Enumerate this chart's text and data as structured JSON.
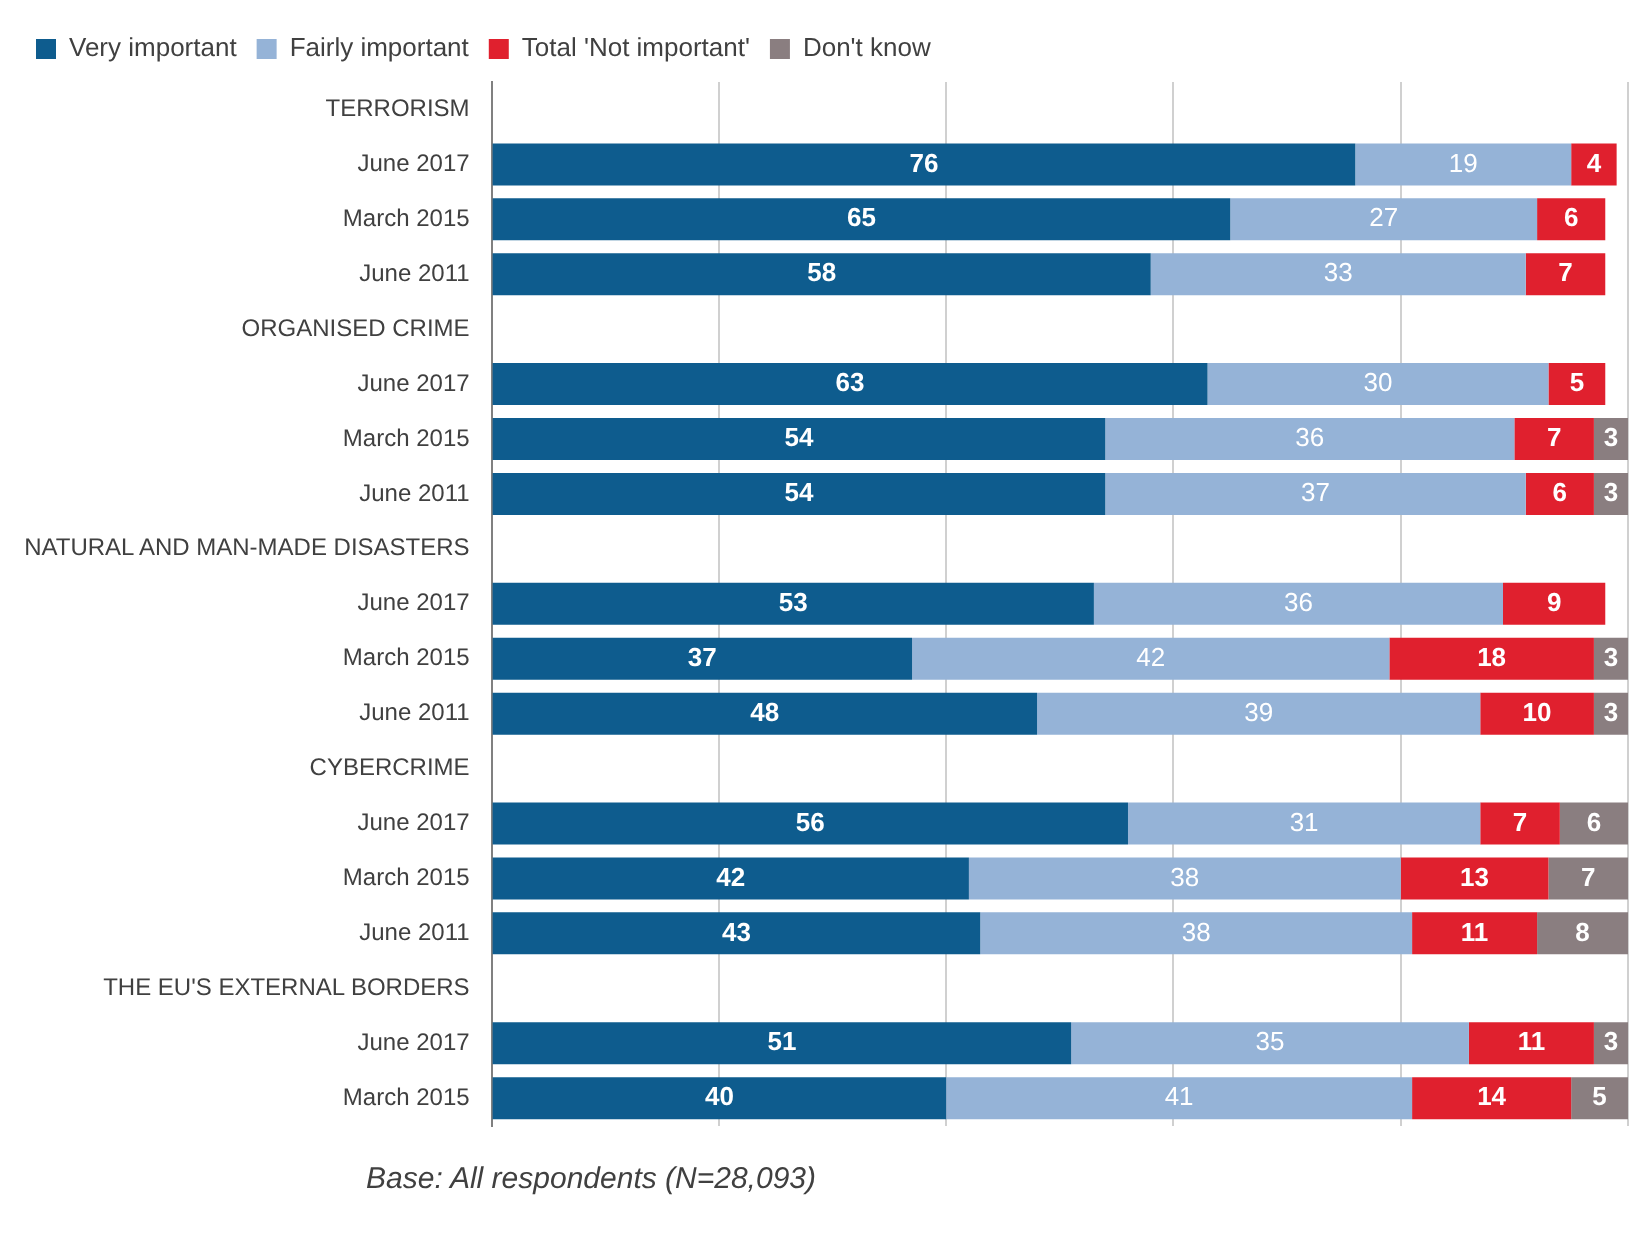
{
  "chart_data": {
    "type": "bar",
    "orientation": "horizontal",
    "stacked": true,
    "data_labels": true,
    "legend": "top",
    "grid": "x",
    "tick_labels": "y",
    "categories": [
      "TERRORISM",
      "June 2017",
      "March 2015",
      "June 2011",
      "ORGANISED CRIME",
      "June 2017",
      "March 2015",
      "June 2011",
      "NATURAL AND MAN-MADE DISASTERS",
      "June 2017",
      "March 2015",
      "June 2011",
      "CYBERCRIME",
      "June 2017",
      "March 2015",
      "June 2011",
      "THE EU'S EXTERNAL BORDERS",
      "June 2017",
      "March 2015"
    ],
    "xlim": [
      0,
      100
    ],
    "xticks": [
      {
        "value": 0,
        "label": null
      },
      {
        "value": 20,
        "label": null
      },
      {
        "value": 40,
        "label": null
      },
      {
        "value": 60,
        "label": null
      },
      {
        "value": 80,
        "label": null
      },
      {
        "value": 100,
        "label": null
      }
    ],
    "series": [
      {
        "name": "Very important",
        "color": "#0e5c8e",
        "values": [
          null,
          76,
          65,
          58,
          null,
          63,
          54,
          54,
          null,
          53,
          37,
          48,
          null,
          56,
          42,
          43,
          null,
          51,
          40
        ]
      },
      {
        "name": "Fairly important",
        "color": "#95b3d7",
        "values": [
          null,
          19,
          27,
          33,
          null,
          30,
          36,
          37,
          null,
          36,
          42,
          39,
          null,
          31,
          38,
          38,
          null,
          35,
          41
        ]
      },
      {
        "name": "Total 'Not important'",
        "color": "#e0202e",
        "values": [
          null,
          4,
          6,
          7,
          null,
          5,
          7,
          6,
          null,
          9,
          18,
          10,
          null,
          7,
          13,
          11,
          null,
          11,
          14
        ]
      },
      {
        "name": "Don't know",
        "color": "#8a7e80",
        "values": [
          null,
          null,
          null,
          null,
          null,
          null,
          3,
          3,
          null,
          null,
          3,
          3,
          null,
          6,
          7,
          8,
          null,
          3,
          5
        ]
      }
    ],
    "annotations": [
      "Base: All respondents (N=28,093)"
    ]
  }
}
